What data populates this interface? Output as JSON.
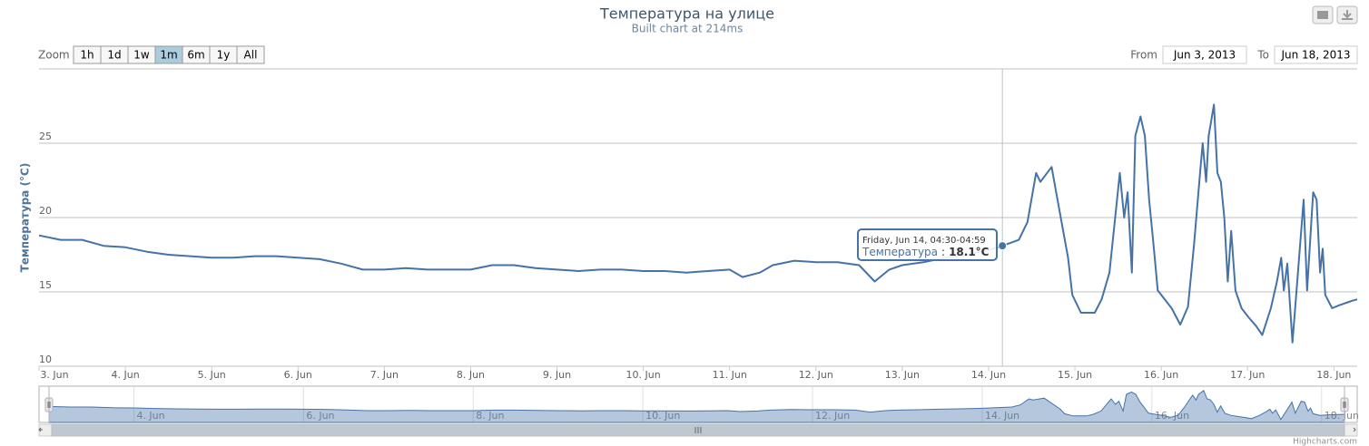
{
  "chart_data": {
    "type": "line",
    "title": "Температура на улице",
    "subtitle": "Built chart at 214ms",
    "y_label": "Температура (°C)",
    "x": [
      3,
      3.25,
      3.5,
      3.75,
      4,
      4.25,
      4.5,
      4.75,
      5,
      5.25,
      5.5,
      5.75,
      6,
      6.25,
      6.5,
      6.75,
      7,
      7.25,
      7.5,
      7.75,
      8,
      8.25,
      8.5,
      8.75,
      9,
      9.25,
      9.5,
      9.75,
      10,
      10.25,
      10.5,
      10.75,
      11,
      11.15,
      11.35,
      11.5,
      11.75,
      12,
      12.25,
      12.5,
      12.68,
      12.85,
      13,
      13.25,
      13.5,
      13.75,
      14,
      14.16,
      14.35,
      14.45,
      14.55,
      14.6,
      14.73,
      14.78,
      14.92,
      14.97,
      15.07,
      15.23,
      15.31,
      15.4,
      15.52,
      15.57,
      15.61,
      15.66,
      15.7,
      15.76,
      15.81,
      15.86,
      15.91,
      15.96,
      16.12,
      16.22,
      16.31,
      16.38,
      16.45,
      16.48,
      16.52,
      16.55,
      16.61,
      16.65,
      16.69,
      16.73,
      16.77,
      16.81,
      16.86,
      16.93,
      17.01,
      17.1,
      17.17,
      17.27,
      17.34,
      17.39,
      17.42,
      17.46,
      17.52,
      17.65,
      17.69,
      17.76,
      17.8,
      17.84,
      17.87,
      17.9,
      17.98,
      18.06,
      18.16,
      18.21,
      18.27
    ],
    "series": [
      {
        "name": "Температура",
        "color": "#4572a7",
        "values": [
          18.8,
          18.5,
          18.5,
          18.1,
          18.0,
          17.7,
          17.5,
          17.4,
          17.3,
          17.3,
          17.4,
          17.4,
          17.3,
          17.2,
          16.9,
          16.5,
          16.5,
          16.6,
          16.5,
          16.5,
          16.5,
          16.8,
          16.8,
          16.6,
          16.5,
          16.4,
          16.5,
          16.5,
          16.4,
          16.4,
          16.3,
          16.4,
          16.5,
          16.0,
          16.3,
          16.8,
          17.1,
          17.0,
          17.0,
          16.8,
          15.7,
          16.5,
          16.8,
          17.0,
          17.3,
          17.5,
          17.8,
          18.1,
          18.5,
          19.7,
          23.0,
          22.4,
          23.4,
          21.8,
          17.3,
          14.8,
          13.6,
          13.6,
          14.5,
          16.3,
          23.0,
          20.0,
          21.7,
          16.3,
          25.5,
          26.8,
          25.5,
          21.2,
          18.2,
          15.1,
          13.9,
          12.8,
          14.0,
          18.2,
          23.0,
          25.0,
          22.4,
          25.5,
          27.6,
          23.0,
          22.4,
          20.0,
          15.7,
          19.1,
          15.1,
          13.9,
          13.3,
          12.7,
          12.1,
          13.9,
          15.7,
          17.3,
          15.1,
          16.9,
          11.6,
          21.2,
          15.1,
          21.7,
          21.2,
          16.3,
          17.9,
          14.8,
          13.9,
          14.1,
          14.3,
          14.4,
          14.5
        ]
      }
    ],
    "xlim": [
      3,
      18.27
    ],
    "xticks": [
      {
        "value": 3,
        "label": "3. Jun"
      },
      {
        "value": 4,
        "label": "4. Jun"
      },
      {
        "value": 5,
        "label": "5. Jun"
      },
      {
        "value": 6,
        "label": "6. Jun"
      },
      {
        "value": 7,
        "label": "7. Jun"
      },
      {
        "value": 8,
        "label": "8. Jun"
      },
      {
        "value": 9,
        "label": "9. Jun"
      },
      {
        "value": 10,
        "label": "10. Jun"
      },
      {
        "value": 11,
        "label": "11. Jun"
      },
      {
        "value": 12,
        "label": "12. Jun"
      },
      {
        "value": 13,
        "label": "13. Jun"
      },
      {
        "value": 14,
        "label": "14. Jun"
      },
      {
        "value": 15,
        "label": "15. Jun"
      },
      {
        "value": 16,
        "label": "16. Jun"
      },
      {
        "value": 17,
        "label": "17. Jun"
      },
      {
        "value": 18,
        "label": "18. Jun"
      }
    ],
    "ylim": [
      10,
      30
    ],
    "yticks": [
      10,
      15,
      20,
      25
    ],
    "grid": true,
    "range_selector": {
      "zoom_label": "Zoom",
      "buttons": [
        "1h",
        "1d",
        "1w",
        "1m",
        "6m",
        "1y",
        "All"
      ],
      "selected": 3,
      "from_label": "From",
      "from": "Jun 3, 2013",
      "to_label": "To",
      "to": "Jun 18, 2013"
    },
    "tooltip": {
      "header": "Friday, Jun 14, 04:30-04:59",
      "point": 47,
      "separator": ":",
      "value": "18.1°C"
    },
    "credits": "Highcharts.com"
  }
}
